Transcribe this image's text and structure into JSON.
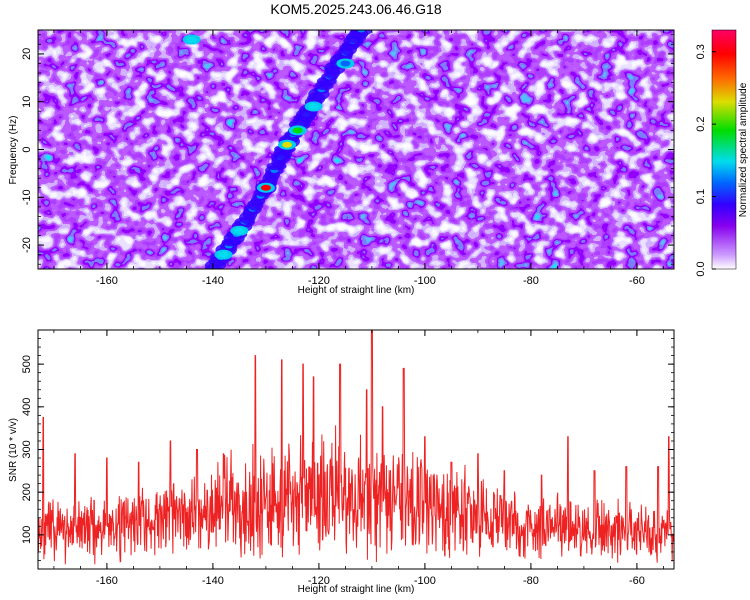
{
  "title": "KOM5.2025.243.06.46.G18",
  "chart_data": [
    {
      "type": "heatmap",
      "xlabel": "Height of straight line (km)",
      "ylabel": "Frequency (Hz)",
      "xlim": [
        -173,
        -53
      ],
      "ylim": [
        -25,
        25
      ],
      "x_ticks": [
        -160,
        -140,
        -120,
        -100,
        -80,
        -60
      ],
      "y_ticks": [
        -20,
        -10,
        0,
        10,
        20
      ],
      "colorbar": {
        "label": "Normalized spectral amplitude",
        "range": [
          0.0,
          0.33
        ],
        "ticks": [
          "0.0",
          "0.1",
          "0.2",
          "0.3"
        ],
        "colormap": [
          "#ffffff",
          "#cc99ff",
          "#8800ee",
          "#3300ff",
          "#0066ff",
          "#00ddee",
          "#00dd00",
          "#dddd00",
          "#ff6600",
          "#ff0000",
          "#ff0066"
        ]
      },
      "ridge": {
        "points": [
          [
            -140,
            -25
          ],
          [
            -135,
            -17
          ],
          [
            -130,
            -8
          ],
          [
            -126,
            1
          ],
          [
            -122,
            8
          ],
          [
            -117,
            17
          ],
          [
            -112,
            25
          ]
        ],
        "hotspots": [
          [
            -130,
            -8,
            0.31
          ],
          [
            -126,
            1,
            0.27
          ],
          [
            -124,
            4,
            0.15
          ],
          [
            -121,
            9,
            0.1
          ],
          [
            -115,
            18,
            0.08
          ],
          [
            -135,
            -17,
            0.12
          ],
          [
            -138,
            -22,
            0.1
          ],
          [
            -144,
            23,
            0.1
          ]
        ]
      },
      "grid": false
    },
    {
      "type": "line",
      "xlabel": "Height of straight line (km)",
      "ylabel": "SNR (10 * v/v)",
      "xlim": [
        -173,
        -53
      ],
      "ylim": [
        20,
        580
      ],
      "x_ticks": [
        -160,
        -140,
        -120,
        -100,
        -80,
        -60
      ],
      "y_ticks": [
        100,
        200,
        300,
        400,
        500
      ],
      "series": [
        {
          "color": "#ee2222",
          "baseline_mean": 140,
          "peaks": [
            [
              -172,
              375
            ],
            [
              -166,
              290
            ],
            [
              -160,
              280
            ],
            [
              -154,
              270
            ],
            [
              -148,
              320
            ],
            [
              -143,
              300
            ],
            [
              -138,
              290
            ],
            [
              -132,
              520
            ],
            [
              -127,
              510
            ],
            [
              -123,
              500
            ],
            [
              -121,
              470
            ],
            [
              -116,
              500
            ],
            [
              -111,
              440
            ],
            [
              -110,
              580
            ],
            [
              -108,
              400
            ],
            [
              -104,
              490
            ],
            [
              -100,
              330
            ],
            [
              -95,
              270
            ],
            [
              -90,
              290
            ],
            [
              -85,
              250
            ],
            [
              -78,
              240
            ],
            [
              -73,
              330
            ],
            [
              -68,
              250
            ],
            [
              -62,
              260
            ],
            [
              -56,
              260
            ],
            [
              -54,
              330
            ]
          ]
        }
      ],
      "grid": false
    }
  ]
}
